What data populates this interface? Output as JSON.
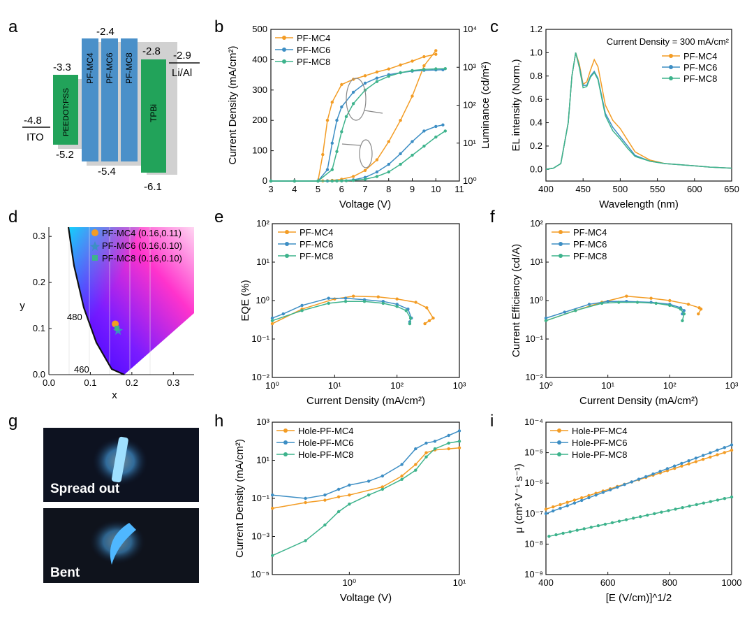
{
  "colors": {
    "mc4": "#F39C24",
    "mc6": "#3D8EC4",
    "mc8": "#3DB38C",
    "frame": "#111111"
  },
  "panel_letters": {
    "a": "a",
    "b": "b",
    "c": "c",
    "d": "d",
    "e": "e",
    "f": "f",
    "g": "g",
    "h": "h",
    "i": "i"
  },
  "panel_a": {
    "layers": [
      {
        "name": "ITO",
        "top": null,
        "bottom": -4.8,
        "label_top": "-4.8",
        "label": "ITO"
      },
      {
        "name": "PEEDOT:PSS",
        "top": -3.3,
        "bottom": -5.2,
        "label_top": "-3.3",
        "label_bottom": "-5.2"
      },
      {
        "name": "PF-MC4",
        "top": -2.4,
        "bottom": -5.4
      },
      {
        "name": "PF-MC6",
        "top": -2.4,
        "bottom": -5.4
      },
      {
        "name": "PF-MC8",
        "top": -2.4,
        "bottom": -5.4
      },
      {
        "name": "TPBi",
        "top": -2.8,
        "bottom": -6.1,
        "label_top": "-2.8",
        "label_bottom": "-6.1"
      },
      {
        "name": "Li/Al",
        "top": -2.9,
        "bottom": null,
        "label_top": "-2.9",
        "label": "Li/Al"
      }
    ],
    "pf_top_label": "-2.4",
    "pf_bottom_label": "-5.4"
  },
  "chart_data": [
    {
      "id": "b",
      "type": "line",
      "xlabel": "Voltage (V)",
      "ylabel": "Current Density (mA/cm²)",
      "y2label": "Luminance (cd/m²)",
      "xlim": [
        3,
        11
      ],
      "ylim": [
        0,
        500
      ],
      "y2lim_log": [
        0,
        4
      ],
      "xticks": [
        "3",
        "4",
        "5",
        "6",
        "7",
        "8",
        "9",
        "10",
        "11"
      ],
      "yticks": [
        "0",
        "100",
        "200",
        "300",
        "400",
        "500"
      ],
      "series": [
        {
          "name": "PF-MC4",
          "x": [
            3,
            4,
            5,
            5.2,
            5.4,
            5.6,
            6,
            6.5,
            7,
            7.5,
            8,
            8.5,
            9,
            9.5,
            10
          ],
          "current": [
            0,
            0,
            0,
            0.5,
            1,
            2,
            6,
            15,
            35,
            70,
            130,
            200,
            280,
            380,
            430
          ],
          "luminance": [
            1,
            1,
            1,
            5,
            40,
            120,
            350,
            480,
            600,
            750,
            900,
            1150,
            1450,
            1900,
            2200
          ]
        },
        {
          "name": "PF-MC6",
          "x": [
            3,
            4,
            5,
            5.4,
            5.6,
            5.8,
            6,
            6.5,
            7,
            7.5,
            8,
            8.5,
            9,
            9.5,
            10,
            10.3
          ],
          "current": [
            0,
            0,
            0,
            0,
            0.3,
            0.6,
            1,
            4,
            12,
            30,
            55,
            90,
            130,
            165,
            180,
            185
          ],
          "luminance": [
            1,
            1,
            1,
            2,
            10,
            40,
            90,
            220,
            380,
            520,
            640,
            720,
            790,
            830,
            850,
            860
          ]
        },
        {
          "name": "PF-MC8",
          "x": [
            3,
            4,
            5,
            5.6,
            5.8,
            6,
            6.2,
            6.5,
            7,
            7.5,
            8,
            8.5,
            9,
            9.5,
            10,
            10.4
          ],
          "current": [
            0,
            0,
            0,
            0,
            0.2,
            0.5,
            1,
            2,
            6,
            15,
            30,
            55,
            85,
            115,
            145,
            165
          ],
          "luminance": [
            1,
            1,
            1,
            2,
            6,
            20,
            50,
            110,
            250,
            420,
            580,
            720,
            820,
            880,
            910,
            920
          ]
        }
      ],
      "legend": [
        "PF-MC4",
        "PF-MC6",
        "PF-MC8"
      ],
      "legend_position": "top-left"
    },
    {
      "id": "c",
      "type": "line",
      "title": "Current Density = 300 mA/cm²",
      "xlabel": "Wavelength (nm)",
      "ylabel": "EL intensity (Norm.)",
      "xlim": [
        400,
        650
      ],
      "ylim": [
        -0.1,
        1.2
      ],
      "xticks": [
        "400",
        "450",
        "500",
        "550",
        "600",
        "650"
      ],
      "yticks": [
        "0.0",
        "0.2",
        "0.4",
        "0.6",
        "0.8",
        "1.0",
        "1.2"
      ],
      "series": [
        {
          "name": "PF-MC4",
          "x": [
            400,
            410,
            420,
            430,
            435,
            440,
            445,
            450,
            455,
            460,
            465,
            470,
            480,
            490,
            500,
            510,
            520,
            540,
            560,
            580,
            600,
            620,
            650
          ],
          "y": [
            0,
            0.01,
            0.05,
            0.4,
            0.8,
            1.0,
            0.9,
            0.73,
            0.75,
            0.85,
            0.94,
            0.88,
            0.55,
            0.42,
            0.35,
            0.25,
            0.15,
            0.08,
            0.05,
            0.04,
            0.03,
            0.02,
            0.01
          ]
        },
        {
          "name": "PF-MC6",
          "x": [
            400,
            410,
            420,
            430,
            435,
            440,
            445,
            450,
            455,
            460,
            465,
            470,
            480,
            490,
            500,
            510,
            520,
            540,
            560,
            580,
            600,
            620,
            650
          ],
          "y": [
            0,
            0.01,
            0.05,
            0.4,
            0.8,
            1.0,
            0.88,
            0.72,
            0.72,
            0.8,
            0.84,
            0.78,
            0.48,
            0.36,
            0.28,
            0.2,
            0.12,
            0.07,
            0.05,
            0.04,
            0.03,
            0.02,
            0.01
          ]
        },
        {
          "name": "PF-MC8",
          "x": [
            400,
            410,
            420,
            430,
            435,
            440,
            445,
            450,
            455,
            460,
            465,
            470,
            480,
            490,
            500,
            510,
            520,
            540,
            560,
            580,
            600,
            620,
            650
          ],
          "y": [
            0,
            0.01,
            0.05,
            0.4,
            0.8,
            1.0,
            0.87,
            0.7,
            0.71,
            0.79,
            0.83,
            0.77,
            0.46,
            0.33,
            0.26,
            0.18,
            0.11,
            0.07,
            0.05,
            0.04,
            0.03,
            0.02,
            0.01
          ]
        }
      ],
      "legend": [
        "PF-MC4",
        "PF-MC6",
        "PF-MC8"
      ],
      "legend_position": "top-right"
    },
    {
      "id": "d",
      "type": "scatter",
      "xlabel": "x",
      "ylabel": "y",
      "xlim": [
        0.0,
        0.35
      ],
      "ylim": [
        0.0,
        0.32
      ],
      "xticks": [
        "0.0",
        "0.1",
        "0.2",
        "0.3"
      ],
      "yticks": [
        "0.0",
        "0.1",
        "0.2",
        "0.3"
      ],
      "annotations": [
        "480",
        "460"
      ],
      "series": [
        {
          "name": "PF-MC4 (0.16,0.11)",
          "x": [
            0.16
          ],
          "y": [
            0.11
          ],
          "marker": "circle"
        },
        {
          "name": "PF-MC6 (0.16,0.10)",
          "x": [
            0.16
          ],
          "y": [
            0.1
          ],
          "marker": "star"
        },
        {
          "name": "PF-MC8 (0.16,0.10)",
          "x": [
            0.16
          ],
          "y": [
            0.1
          ],
          "marker": "square"
        }
      ],
      "legend": [
        "PF-MC4 (0.16,0.11)",
        "PF-MC6 (0.16,0.10)",
        "PF-MC8 (0.16,0.10)"
      ],
      "legend_position": "top-right"
    },
    {
      "id": "e",
      "type": "line",
      "xlabel": "Current Density (mA/cm²)",
      "ylabel": "EQE (%)",
      "xlim_log": [
        0,
        3
      ],
      "ylim_log": [
        -2,
        2
      ],
      "series": [
        {
          "name": "PF-MC4",
          "x": [
            1,
            3,
            10,
            20,
            50,
            100,
            200,
            300,
            380,
            330,
            280
          ],
          "y": [
            0.25,
            0.6,
            1.1,
            1.3,
            1.25,
            1.1,
            0.9,
            0.65,
            0.35,
            0.3,
            0.25
          ]
        },
        {
          "name": "PF-MC6",
          "x": [
            1,
            1.5,
            3,
            8,
            15,
            30,
            60,
            100,
            150,
            170,
            160
          ],
          "y": [
            0.35,
            0.45,
            0.75,
            1.15,
            1.15,
            1.05,
            0.95,
            0.8,
            0.6,
            0.35,
            0.28
          ]
        },
        {
          "name": "PF-MC8",
          "x": [
            1,
            3,
            8,
            15,
            30,
            60,
            100,
            140,
            165,
            160
          ],
          "y": [
            0.3,
            0.55,
            0.85,
            0.95,
            0.95,
            0.85,
            0.7,
            0.55,
            0.35,
            0.25
          ]
        }
      ],
      "legend": [
        "PF-MC4",
        "PF-MC6",
        "PF-MC8"
      ],
      "legend_position": "top-left"
    },
    {
      "id": "f",
      "type": "line",
      "xlabel": "Current Density (mA/cm²)",
      "ylabel": "Current Efficiency (cd/A)",
      "xlim_log": [
        0,
        3
      ],
      "ylim_log": [
        -2,
        2
      ],
      "series": [
        {
          "name": "PF-MC4",
          "x": [
            1,
            3,
            8,
            20,
            50,
            100,
            200,
            300,
            320,
            290
          ],
          "y": [
            0.3,
            0.55,
            0.9,
            1.3,
            1.15,
            1.0,
            0.8,
            0.65,
            0.6,
            0.45
          ]
        },
        {
          "name": "PF-MC6",
          "x": [
            1,
            2,
            5,
            10,
            20,
            50,
            100,
            150,
            170,
            160
          ],
          "y": [
            0.35,
            0.5,
            0.8,
            0.95,
            0.95,
            0.9,
            0.8,
            0.65,
            0.55,
            0.45
          ]
        },
        {
          "name": "PF-MC8",
          "x": [
            1,
            3,
            8,
            15,
            30,
            60,
            100,
            150,
            170,
            160
          ],
          "y": [
            0.3,
            0.55,
            0.85,
            0.9,
            0.9,
            0.85,
            0.75,
            0.6,
            0.45,
            0.3
          ]
        }
      ],
      "legend": [
        "PF-MC4",
        "PF-MC6",
        "PF-MC8"
      ],
      "legend_position": "top-left"
    },
    {
      "id": "h",
      "type": "line",
      "xlabel": "Voltage (V)",
      "ylabel": "Current Density (mA/cm²)",
      "xlim_log": [
        -0.7,
        1
      ],
      "ylim_log": [
        -5,
        3
      ],
      "series": [
        {
          "name": "Hole-PF-MC4",
          "x": [
            0.2,
            0.4,
            0.6,
            0.8,
            1,
            2,
            3,
            4,
            5,
            6,
            8,
            10
          ],
          "y": [
            0.03,
            0.06,
            0.08,
            0.12,
            0.15,
            0.4,
            1.5,
            6,
            25,
            35,
            40,
            45
          ]
        },
        {
          "name": "Hole-PF-MC6",
          "x": [
            0.2,
            0.4,
            0.6,
            0.8,
            1,
            1.5,
            2,
            3,
            4,
            5,
            6,
            8,
            10
          ],
          "y": [
            0.15,
            0.1,
            0.15,
            0.3,
            0.5,
            0.8,
            1.5,
            6,
            40,
            80,
            100,
            200,
            350
          ]
        },
        {
          "name": "Hole-PF-MC8",
          "x": [
            0.2,
            0.4,
            0.6,
            0.8,
            1,
            1.5,
            2,
            3,
            4,
            5,
            6,
            8,
            10
          ],
          "y": [
            0.0001,
            0.0006,
            0.004,
            0.02,
            0.05,
            0.15,
            0.3,
            1,
            3,
            15,
            40,
            80,
            100
          ]
        }
      ],
      "legend": [
        "Hole-PF-MC4",
        "Hole-PF-MC6",
        "Hole-PF-MC8"
      ],
      "legend_position": "top-left"
    },
    {
      "id": "i",
      "type": "line",
      "xlabel": "[E (V/cm)]^1/2",
      "ylabel": "μ (cm² V⁻¹ s⁻¹)",
      "xlim": [
        400,
        1000
      ],
      "ylim_log": [
        -9,
        -4
      ],
      "xticks": [
        "400",
        "600",
        "800",
        "1000"
      ],
      "series": [
        {
          "name": "Hole-PF-MC4",
          "x": [
            400,
            1000
          ],
          "y": [
            1.4e-07,
            1.2e-05
          ]
        },
        {
          "name": "Hole-PF-MC6",
          "x": [
            400,
            1000
          ],
          "y": [
            1e-07,
            1.8e-05
          ]
        },
        {
          "name": "Hole-PF-MC8",
          "x": [
            410,
            1000
          ],
          "y": [
            1.8e-08,
            3.5e-07
          ]
        }
      ],
      "legend": [
        "Hole-PF-MC4",
        "Hole-PF-MC6",
        "Hole-PF-MC8"
      ],
      "legend_position": "top-left"
    }
  ],
  "panel_g": {
    "labels": [
      "Spread out",
      "Bent"
    ]
  },
  "texts": {
    "a_minus48": "-4.8",
    "a_ito": "ITO",
    "a_minus33": "-3.3",
    "a_minus52": "-5.2",
    "a_pedot": "PEEDOT:PSS",
    "a_minus24": "-2.4",
    "a_minus54": "-5.4",
    "a_pfmc4": "PF-MC4",
    "a_pfmc6": "PF-MC6",
    "a_pfmc8": "PF-MC8",
    "a_minus28": "-2.8",
    "a_minus61": "-6.1",
    "a_tpbi": "TPBi",
    "a_minus29": "-2.9",
    "a_lial": "Li/Al",
    "logdecades": [
      "10⁻⁵",
      "10⁻³",
      "10⁻¹",
      "10¹",
      "10³"
    ]
  }
}
